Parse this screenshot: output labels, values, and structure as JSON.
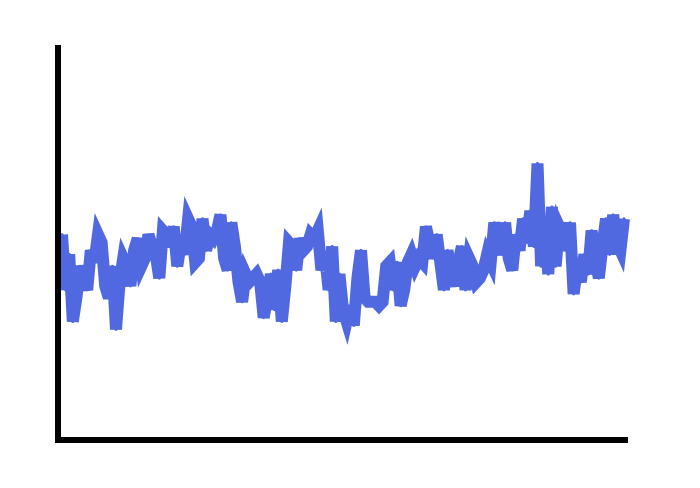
{
  "chart_data": {
    "type": "line",
    "title": "",
    "xlabel": "",
    "ylabel": "",
    "show_ticks": false,
    "grid": false,
    "xlim": [
      0,
      140
    ],
    "ylim": [
      0,
      100
    ],
    "colors": {
      "series": "#5068e0",
      "axes": "#000000",
      "background": "#ffffff"
    },
    "series": [
      {
        "values": [
          52,
          38,
          47,
          30,
          36,
          44,
          41,
          38,
          48,
          45,
          52,
          50,
          39,
          36,
          44,
          28,
          40,
          46,
          44,
          39,
          48,
          51,
          44,
          46,
          52,
          49,
          47,
          41,
          53,
          52,
          49,
          54,
          44,
          50,
          47,
          56,
          54,
          45,
          46,
          56,
          48,
          52,
          51,
          53,
          57,
          46,
          43,
          55,
          49,
          40,
          35,
          42,
          40,
          41,
          42,
          40,
          31,
          36,
          42,
          33,
          43,
          30,
          39,
          50,
          49,
          43,
          51,
          48,
          49,
          52,
          51,
          53,
          43,
          47,
          38,
          49,
          30,
          42,
          33,
          30,
          34,
          29,
          41,
          48,
          36,
          35,
          35,
          35,
          34,
          35,
          44,
          45,
          38,
          45,
          34,
          38,
          45,
          47,
          44,
          46,
          45,
          54,
          50,
          46,
          52,
          45,
          38,
          48,
          42,
          39,
          45,
          49,
          38,
          46,
          44,
          40,
          41,
          43,
          47,
          45,
          55,
          50,
          47,
          55,
          46,
          43,
          52,
          48,
          56,
          50,
          58,
          49,
          70,
          44,
          55,
          42,
          59,
          44,
          54,
          52,
          48,
          55,
          37,
          44,
          40,
          47,
          42,
          53,
          46,
          41,
          49,
          56,
          47,
          57,
          50,
          48,
          56
        ]
      }
    ]
  }
}
